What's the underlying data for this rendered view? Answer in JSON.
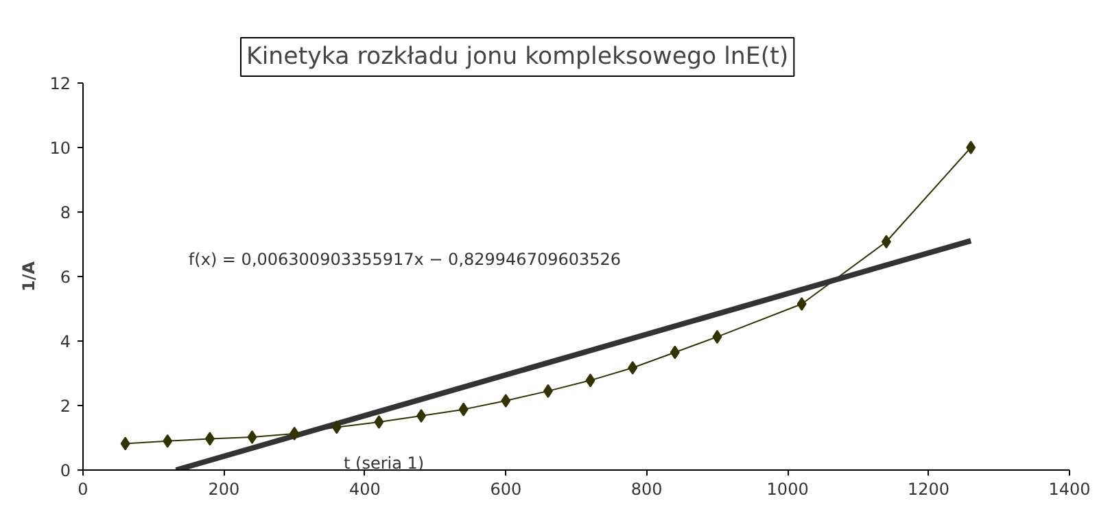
{
  "chart_data": {
    "type": "line",
    "title": "Kinetyka rozkładu jonu kompleksowego lnE(t)",
    "xlabel": "t (seria 1)",
    "ylabel": "1/A",
    "annotations": [
      "f(x) = 0,006300903355917x − 0,829946709603526"
    ],
    "series": [
      {
        "color": "#333300",
        "x": [
          60,
          120,
          180,
          240,
          300,
          360,
          420,
          480,
          540,
          600,
          660,
          720,
          780,
          840,
          900,
          1020,
          1140,
          1260
        ],
        "values": [
          0.82,
          0.9,
          0.97,
          1.02,
          1.13,
          1.33,
          1.49,
          1.68,
          1.88,
          2.15,
          2.45,
          2.78,
          3.17,
          3.65,
          4.13,
          5.15,
          7.08,
          10.0
        ],
        "marker": "diamond"
      },
      {
        "color": "#333333",
        "x": [
          132,
          1260
        ],
        "values": [
          0,
          7.11
        ],
        "marker": "none"
      }
    ],
    "xlim": [
      0,
      1400
    ],
    "xticks": [
      0,
      200,
      400,
      600,
      800,
      1000,
      1200,
      1400
    ],
    "ylim": [
      0,
      12
    ],
    "yticks": [
      0,
      2,
      4,
      6,
      8,
      10,
      12
    ],
    "grid": false
  }
}
